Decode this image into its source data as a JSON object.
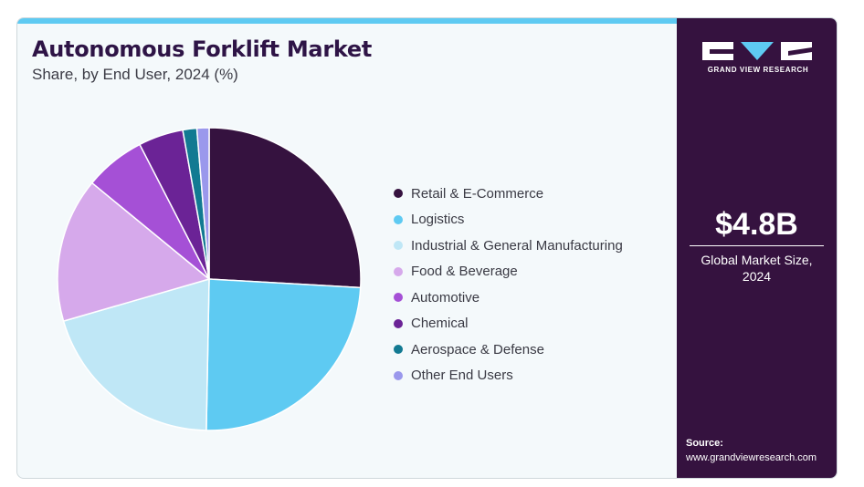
{
  "header": {
    "title": "Autonomous Forklift Market",
    "subtitle": "Share, by End User, 2024 (%)"
  },
  "brand": {
    "name": "GRAND VIEW RESEARCH"
  },
  "stat": {
    "value": "$4.8B",
    "label": "Global Market Size, 2024"
  },
  "source": {
    "label": "Source:",
    "url": "www.grandviewresearch.com"
  },
  "chart_data": {
    "type": "pie",
    "categories": [
      "Retail & E-Commerce",
      "Logistics",
      "Industrial & General Manufacturing",
      "Food & Beverage",
      "Automotive",
      "Chemical",
      "Aerospace & Defense",
      "Other End Users"
    ],
    "values": [
      26.0,
      24.5,
      20.3,
      15.5,
      6.5,
      4.8,
      1.5,
      1.3
    ],
    "colors": [
      "#35123f",
      "#5ecaf2",
      "#bfe7f6",
      "#d6a9eb",
      "#a550d6",
      "#6b2396",
      "#127a92",
      "#9a98ec"
    ],
    "start_direction": "12 o'clock",
    "direction": "clockwise",
    "legend_position": "right"
  }
}
